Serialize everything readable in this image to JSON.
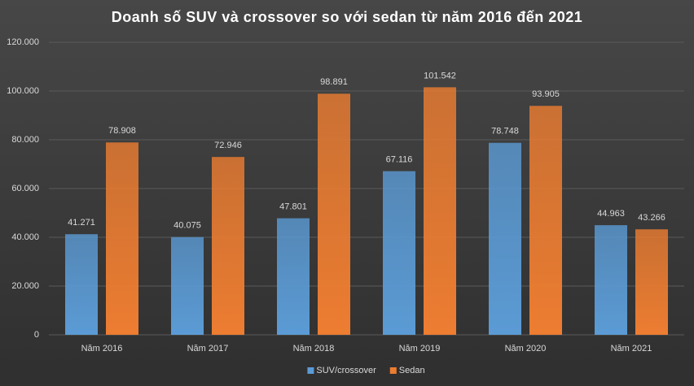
{
  "chart_data": {
    "type": "bar",
    "title": "Doanh số SUV và crossover  so với sedan từ năm 2016 đến 2021",
    "categories": [
      "Năm 2016",
      "Năm 2017",
      "Năm 2018",
      "Năm 2019",
      "Năm 2020",
      "Năm 2021"
    ],
    "series": [
      {
        "name": "SUV/crossover",
        "color": "#5b9bd5",
        "values": [
          41271,
          40075,
          47801,
          67116,
          78748,
          44963
        ],
        "value_labels": [
          "41.271",
          "40.075",
          "47.801",
          "67.116",
          "78.748",
          "44.963"
        ]
      },
      {
        "name": "Sedan",
        "color": "#ed7d31",
        "values": [
          78908,
          72946,
          98891,
          101542,
          93905,
          43266
        ],
        "value_labels": [
          "78.908",
          "72.946",
          "98.891",
          "101.542",
          "93.905",
          "43.266"
        ]
      }
    ],
    "ylim": [
      0,
      120000
    ],
    "yticks": [
      0,
      {
        "value": 20000,
        "label": "20.000"
      },
      {
        "value": 40000,
        "label": "40.000"
      },
      {
        "value": 60000,
        "label": "60.000"
      },
      {
        "value": 80000,
        "label": "80.000"
      },
      {
        "value": 100000,
        "label": "100.000"
      },
      {
        "value": 120000,
        "label": "120.000"
      }
    ],
    "grid": true,
    "legend": "bottom"
  }
}
